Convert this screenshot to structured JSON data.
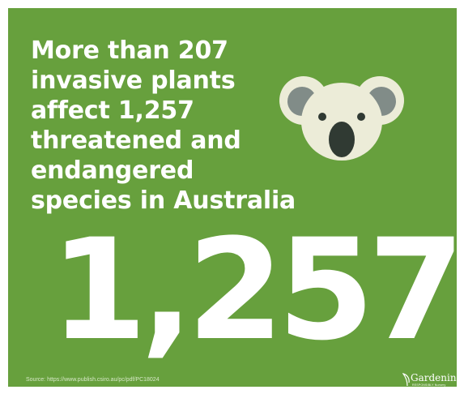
{
  "headline": {
    "lines": [
      "More than 207",
      "invasive plants",
      "affect 1,257",
      "threatened and",
      "endangered",
      "species in Australia"
    ]
  },
  "big_number": "1,257",
  "source": "Source: https://www.publish.csiro.au/pc/pdf/PC18024",
  "brand": {
    "name": "Gardening",
    "tagline": "RESPONSIBLY Nursery"
  },
  "colors": {
    "background": "#67a03d",
    "text": "#ffffff",
    "koala_face": "#ececd8",
    "koala_ear_inner": "#818c88",
    "koala_features": "#303a33"
  },
  "illustration": {
    "icon": "koala-icon"
  }
}
